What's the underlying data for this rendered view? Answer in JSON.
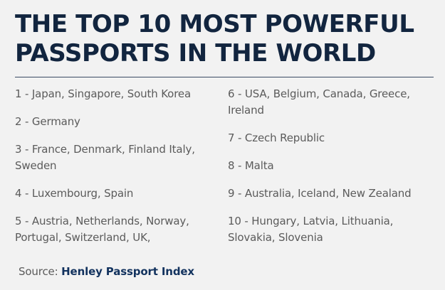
{
  "title": "THE TOP 10 MOST POWERFUL PASSPORTS IN THE WORLD",
  "left_items": [
    "1 - Japan, Singapore, South Korea",
    "2 - Germany",
    "3 - France, Denmark, Finland Italy, Sweden",
    "4 - Luxembourg, Spain",
    "5 - Austria, Netherlands, Norway, Portugal, Switzerland, UK,"
  ],
  "right_items": [
    "6 - USA,  Belgium, Canada, Greece, Ireland",
    "7 - Czech Republic",
    "8 - Malta",
    "9 - Australia, Iceland, New Zealand",
    "10 - Hungary, Latvia, Lithuania, Slovakia, Slovenia"
  ],
  "source": {
    "label": "Source: ",
    "link_text": "Henley Passport Index"
  },
  "colors": {
    "title": "#12253f",
    "text": "#5b5b5b",
    "link": "#12325e",
    "background": "#f2f2f2"
  }
}
